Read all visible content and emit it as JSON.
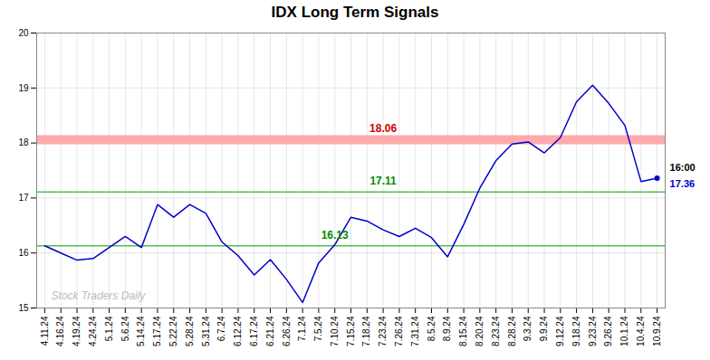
{
  "chart_data": {
    "type": "line",
    "title": "IDX Long Term Signals",
    "categories": [
      "4.11.24",
      "4.16.24",
      "4.19.24",
      "4.24.24",
      "5.1.24",
      "5.6.24",
      "5.14.24",
      "5.17.24",
      "5.22.24",
      "5.28.24",
      "5.31.24",
      "6.7.24",
      "6.12.24",
      "6.17.24",
      "6.21.24",
      "6.26.24",
      "7.1.24",
      "7.5.24",
      "7.10.24",
      "7.15.24",
      "7.18.24",
      "7.23.24",
      "7.26.24",
      "7.31.24",
      "8.5.24",
      "8.9.24",
      "8.15.24",
      "8.20.24",
      "8.23.24",
      "8.28.24",
      "9.3.24",
      "9.9.24",
      "9.12.24",
      "9.18.24",
      "9.23.24",
      "9.26.24",
      "10.1.24",
      "10.4.24",
      "10.9.24"
    ],
    "values": [
      16.13,
      16.0,
      15.87,
      15.9,
      16.1,
      16.3,
      16.1,
      16.88,
      16.65,
      16.88,
      16.72,
      16.2,
      15.95,
      15.6,
      15.88,
      15.52,
      15.1,
      15.82,
      16.15,
      16.65,
      16.58,
      16.42,
      16.3,
      16.45,
      16.28,
      15.93,
      16.52,
      17.18,
      17.68,
      17.98,
      18.02,
      17.82,
      18.1,
      18.75,
      19.05,
      18.72,
      18.32,
      17.3,
      17.36
    ],
    "color": "#0000cc",
    "ylim": [
      15,
      20
    ],
    "yticks": [
      15,
      16,
      17,
      18,
      19,
      20
    ],
    "grid": true,
    "reference_lines": [
      {
        "value": 18.06,
        "color": "#ffaaaa",
        "label": "18.06",
        "label_color": "#cc0000"
      },
      {
        "value": 17.11,
        "color": "#55bb55",
        "label": "17.11",
        "label_color": "#008800"
      },
      {
        "value": 16.13,
        "color": "#55bb55",
        "label": "16.13",
        "label_color": "#008800"
      }
    ],
    "annotations": [
      {
        "text": "16:00",
        "color": "#000000"
      },
      {
        "text": "17.36",
        "color": "#0000cc"
      },
      {
        "text": "Stock Traders Daily",
        "color": "#bbbbbb"
      }
    ]
  }
}
